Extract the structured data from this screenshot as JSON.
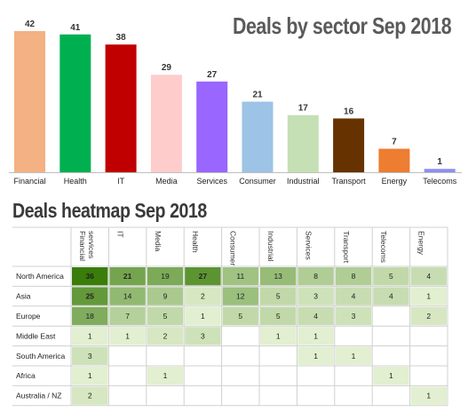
{
  "chart_data": [
    {
      "type": "bar",
      "title": "Deals by sector Sep 2018",
      "categories": [
        "Financial",
        "Health",
        "IT",
        "Media",
        "Services",
        "Consumer",
        "Industrial",
        "Transport",
        "Energy",
        "Telecoms"
      ],
      "values": [
        42,
        41,
        38,
        29,
        27,
        21,
        17,
        16,
        7,
        1
      ],
      "colors": [
        "#f4b183",
        "#00b050",
        "#c00000",
        "#ffcccc",
        "#9966ff",
        "#9dc3e6",
        "#c5e0b4",
        "#663300",
        "#ed7d31",
        "#8e8ef0"
      ],
      "ylim": [
        0,
        42
      ],
      "grid": false,
      "legend": "none"
    },
    {
      "type": "heatmap",
      "title": "Deals heatmap Sep 2018",
      "columns": [
        "Financial services",
        "IT",
        "Media",
        "Health",
        "Consumer",
        "Industrial",
        "Services",
        "Transport",
        "Telecoms",
        "Energy"
      ],
      "rows": [
        "North America",
        "Asia",
        "Europe",
        "Middle East",
        "South America",
        "Africa",
        "Australia / NZ"
      ],
      "values": [
        [
          36,
          21,
          19,
          27,
          11,
          13,
          8,
          8,
          5,
          4
        ],
        [
          25,
          14,
          9,
          2,
          12,
          5,
          3,
          4,
          4,
          1
        ],
        [
          18,
          7,
          5,
          1,
          5,
          5,
          4,
          3,
          null,
          2
        ],
        [
          1,
          1,
          2,
          3,
          null,
          1,
          1,
          null,
          null,
          null
        ],
        [
          3,
          null,
          null,
          null,
          null,
          null,
          1,
          1,
          null,
          null
        ],
        [
          1,
          null,
          1,
          null,
          null,
          null,
          null,
          null,
          1,
          null
        ],
        [
          2,
          null,
          null,
          null,
          null,
          null,
          null,
          null,
          null,
          1
        ]
      ],
      "color_scale": [
        "#e2efd0",
        "#3a7d0a"
      ]
    }
  ]
}
